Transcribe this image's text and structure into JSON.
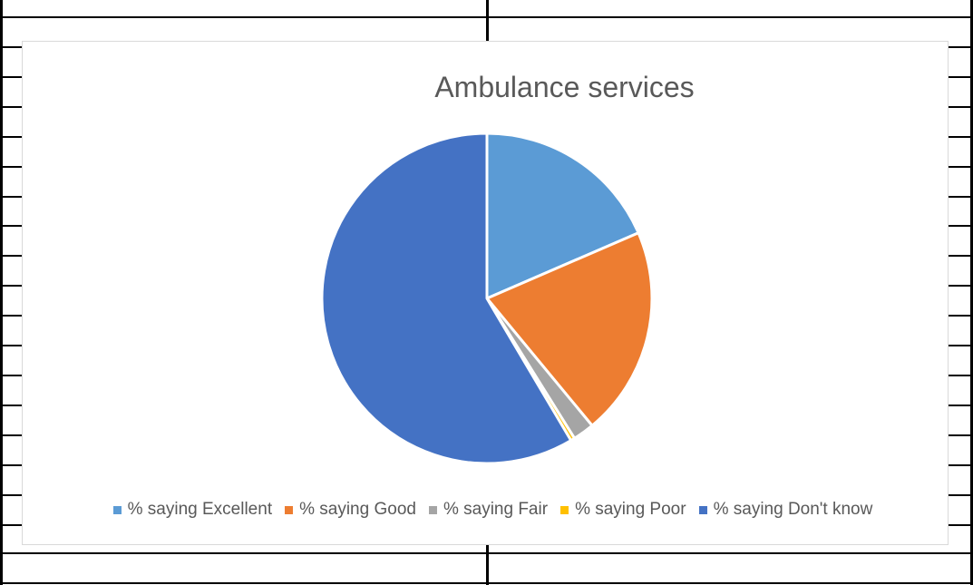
{
  "chart_data": {
    "type": "pie",
    "title": "Ambulance services",
    "categories": [
      "% saying Excellent",
      "% saying Good",
      "% saying Fair",
      "% saying Poor",
      "% saying Don't know"
    ],
    "values": [
      18.5,
      20.5,
      2.1,
      0.4,
      58.5
    ],
    "colors": [
      "#5b9bd5",
      "#ed7d31",
      "#a5a5a5",
      "#ffc000",
      "#4472c4"
    ],
    "legend_position": "bottom"
  }
}
